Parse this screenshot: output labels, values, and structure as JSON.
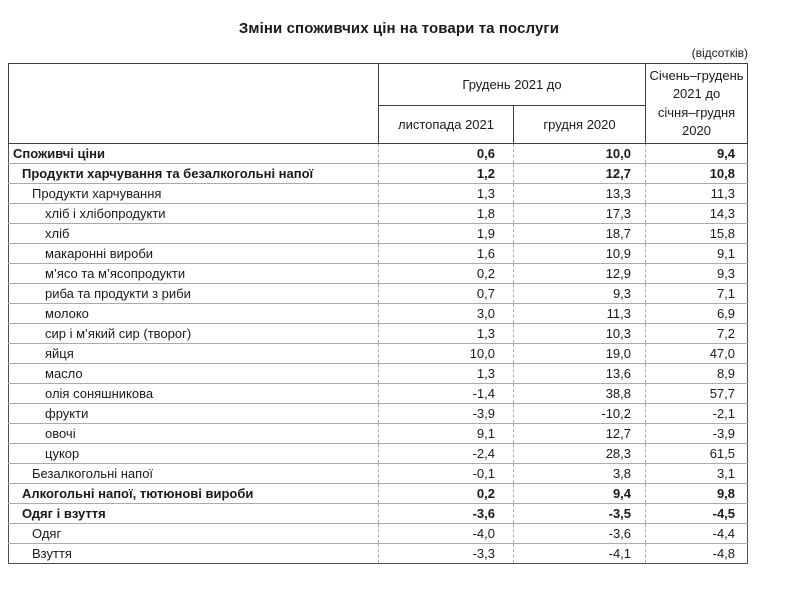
{
  "title": "Зміни споживчих цін на товари та послуги",
  "unit_note": "(відсотків)",
  "table": {
    "columns": {
      "group_header": "Грудень 2021 до",
      "sub_headers": [
        "листопада 2021",
        "грудня 2020"
      ],
      "period_header": "Січень–грудень 2021 до січня–грудня 2020",
      "period_header_lines": [
        "Січень–грудень",
        "2021 до",
        "січня–грудня",
        "2020"
      ]
    },
    "rows": [
      {
        "label": "Споживчі ціни",
        "indent": 0,
        "bold": true,
        "v1": "0,6",
        "v2": "10,0",
        "v3": "9,4"
      },
      {
        "label": "Продукти харчування та безалкогольні напої",
        "indent": 1,
        "bold": true,
        "v1": "1,2",
        "v2": "12,7",
        "v3": "10,8"
      },
      {
        "label": "Продукти харчування",
        "indent": 2,
        "bold": false,
        "v1": "1,3",
        "v2": "13,3",
        "v3": "11,3"
      },
      {
        "label": "хліб і хлібопродукти",
        "indent": 3,
        "bold": false,
        "v1": "1,8",
        "v2": "17,3",
        "v3": "14,3"
      },
      {
        "label": "хліб",
        "indent": 3,
        "bold": false,
        "v1": "1,9",
        "v2": "18,7",
        "v3": "15,8"
      },
      {
        "label": "макаронні вироби",
        "indent": 3,
        "bold": false,
        "v1": "1,6",
        "v2": "10,9",
        "v3": "9,1"
      },
      {
        "label": "м’ясо та м’ясопродукти",
        "indent": 3,
        "bold": false,
        "v1": "0,2",
        "v2": "12,9",
        "v3": "9,3"
      },
      {
        "label": "риба та продукти з риби",
        "indent": 3,
        "bold": false,
        "v1": "0,7",
        "v2": "9,3",
        "v3": "7,1"
      },
      {
        "label": "молоко",
        "indent": 3,
        "bold": false,
        "v1": "3,0",
        "v2": "11,3",
        "v3": "6,9"
      },
      {
        "label": "сир і м’який сир (творог)",
        "indent": 3,
        "bold": false,
        "v1": "1,3",
        "v2": "10,3",
        "v3": "7,2"
      },
      {
        "label": "яйця",
        "indent": 3,
        "bold": false,
        "v1": "10,0",
        "v2": "19,0",
        "v3": "47,0"
      },
      {
        "label": "масло",
        "indent": 3,
        "bold": false,
        "v1": "1,3",
        "v2": "13,6",
        "v3": "8,9"
      },
      {
        "label": "олія соняшникова",
        "indent": 3,
        "bold": false,
        "v1": "-1,4",
        "v2": "38,8",
        "v3": "57,7"
      },
      {
        "label": "фрукти",
        "indent": 3,
        "bold": false,
        "v1": "-3,9",
        "v2": "-10,2",
        "v3": "-2,1"
      },
      {
        "label": "овочі",
        "indent": 3,
        "bold": false,
        "v1": "9,1",
        "v2": "12,7",
        "v3": "-3,9"
      },
      {
        "label": "цукор",
        "indent": 3,
        "bold": false,
        "v1": "-2,4",
        "v2": "28,3",
        "v3": "61,5"
      },
      {
        "label": "Безалкогольні напої",
        "indent": 2,
        "bold": false,
        "v1": "-0,1",
        "v2": "3,8",
        "v3": "3,1"
      },
      {
        "label": "Алкогольні напої, тютюнові вироби",
        "indent": 1,
        "bold": true,
        "v1": "0,2",
        "v2": "9,4",
        "v3": "9,8"
      },
      {
        "label": "Одяг і взуття",
        "indent": 1,
        "bold": true,
        "v1": "-3,6",
        "v2": "-3,5",
        "v3": "-4,5"
      },
      {
        "label": "Одяг",
        "indent": 2,
        "bold": false,
        "v1": "-4,0",
        "v2": "-3,6",
        "v3": "-4,4"
      },
      {
        "label": "Взуття",
        "indent": 2,
        "bold": false,
        "v1": "-3,3",
        "v2": "-4,1",
        "v3": "-4,8"
      }
    ]
  }
}
